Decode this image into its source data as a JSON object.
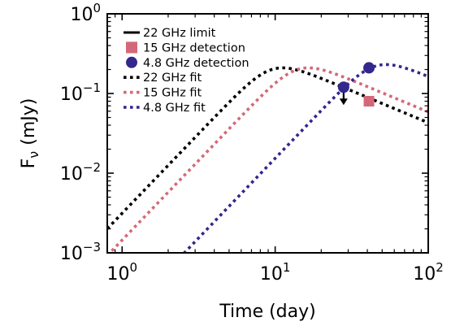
{
  "chart_data": {
    "type": "line",
    "x_scale": "log",
    "y_scale": "log",
    "xlabel": "Time (day)",
    "ylabel_base": "F",
    "ylabel_sub": "ν",
    "ylabel_unit": " (mJy)",
    "xlim": [
      0.8,
      100
    ],
    "ylim": [
      0.001,
      1
    ],
    "x_ticks": [
      {
        "value": 1,
        "base": "10",
        "exp": "0"
      },
      {
        "value": 10,
        "base": "10",
        "exp": "1"
      },
      {
        "value": 100,
        "base": "10",
        "exp": "2"
      }
    ],
    "y_ticks": [
      {
        "value": 0.001,
        "base": "10",
        "exp": "−3"
      },
      {
        "value": 0.01,
        "base": "10",
        "exp": "−2"
      },
      {
        "value": 0.1,
        "base": "10",
        "exp": "−1"
      },
      {
        "value": 1,
        "base": "10",
        "exp": "0"
      }
    ],
    "grid": false,
    "legend_position": "top-left",
    "series": [
      {
        "name": "22 GHz limit",
        "kind": "upper-limit",
        "color": "#000000",
        "points": [
          {
            "x": 28,
            "y": 0.12
          }
        ]
      },
      {
        "name": "15 GHz detection",
        "kind": "marker-square",
        "color": "#d4687a",
        "points": [
          {
            "x": 41,
            "y": 0.08
          }
        ]
      },
      {
        "name": "4.8 GHz detection",
        "kind": "marker-circle",
        "color": "#33268c",
        "points": [
          {
            "x": 28,
            "y": 0.12
          },
          {
            "x": 41,
            "y": 0.21
          }
        ]
      },
      {
        "name": "22 GHz fit",
        "kind": "dotted-line",
        "color": "#000000",
        "peak_x": 9.5,
        "peak_y": 0.2,
        "rise_slope": 2,
        "decay_slope": -0.8,
        "smooth": 2
      },
      {
        "name": "15 GHz fit",
        "kind": "dotted-line",
        "color": "#d4687a",
        "peak_x": 14,
        "peak_y": 0.2,
        "rise_slope": 2,
        "decay_slope": -0.8,
        "smooth": 2
      },
      {
        "name": "4.8 GHz fit",
        "kind": "dotted-line",
        "color": "#33268c",
        "peak_x": 45,
        "peak_y": 0.22,
        "rise_slope": 2,
        "decay_slope": -0.8,
        "smooth": 2
      }
    ]
  }
}
